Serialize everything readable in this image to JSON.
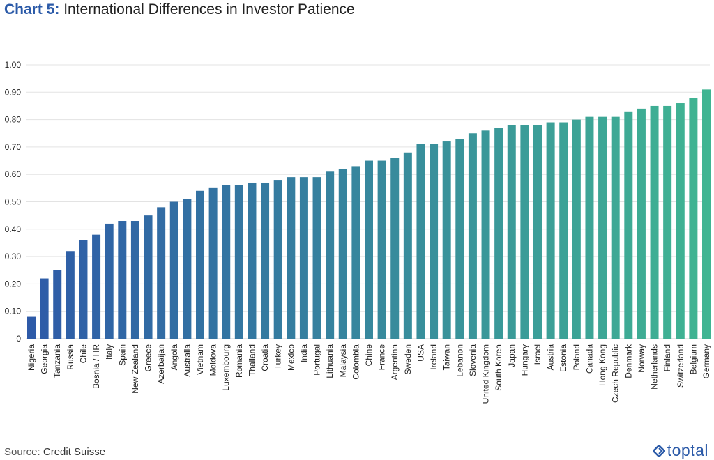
{
  "header": {
    "title_prefix": "Chart 5:",
    "title_main": "International Differences in Investor Patience"
  },
  "footer": {
    "source_label": "Source:",
    "source_value": "Credit Suisse",
    "logo_text": "toptal"
  },
  "colors": {
    "bar_start": "#2e5aa8",
    "bar_end": "#40b592",
    "grid": "#e3e3e3",
    "axis_text": "#222222",
    "brand": "#2b5aa8"
  },
  "chart_data": {
    "type": "bar",
    "title": "International Differences in Investor Patience",
    "xlabel": "",
    "ylabel": "",
    "ylim": [
      0,
      1.0
    ],
    "yticks": [
      "0",
      "0.10",
      "0.20",
      "0.30",
      "0.40",
      "0.50",
      "0.60",
      "0.70",
      "0.80",
      "0.90",
      "1.00"
    ],
    "grid": true,
    "categories": [
      "Nigeria",
      "Georgia",
      "Tanzania",
      "Russia",
      "Chile",
      "Bosnia / HR",
      "Italy",
      "Spain",
      "New Zealand",
      "Greece",
      "Azerbaijan",
      "Angola",
      "Australia",
      "Vietnam",
      "Moldova",
      "Luxembourg",
      "Romania",
      "Thailand",
      "Croatia",
      "Turkey",
      "Mexico",
      "India",
      "Portugal",
      "Lithuania",
      "Malaysia",
      "Colombia",
      "Chine",
      "France",
      "Argentina",
      "Sweden",
      "USA",
      "Ireland",
      "Taiwan",
      "Lebanon",
      "Slovenia",
      "United Kingdom",
      "South Korea",
      "Japan",
      "Hungary",
      "Israel",
      "Austria",
      "Estonia",
      "Poland",
      "Canada",
      "Hong Kong",
      "Czech Republic",
      "Denmark",
      "Norway",
      "Netherlands",
      "Finland",
      "Switzerland",
      "Belgium",
      "Germany"
    ],
    "values": [
      0.08,
      0.22,
      0.25,
      0.32,
      0.36,
      0.38,
      0.42,
      0.43,
      0.43,
      0.45,
      0.48,
      0.5,
      0.51,
      0.54,
      0.55,
      0.56,
      0.56,
      0.57,
      0.57,
      0.58,
      0.59,
      0.59,
      0.59,
      0.61,
      0.62,
      0.63,
      0.65,
      0.65,
      0.66,
      0.68,
      0.71,
      0.71,
      0.72,
      0.73,
      0.75,
      0.76,
      0.77,
      0.78,
      0.78,
      0.78,
      0.79,
      0.79,
      0.8,
      0.81,
      0.81,
      0.81,
      0.83,
      0.84,
      0.85,
      0.85,
      0.86,
      0.88,
      0.91
    ]
  }
}
